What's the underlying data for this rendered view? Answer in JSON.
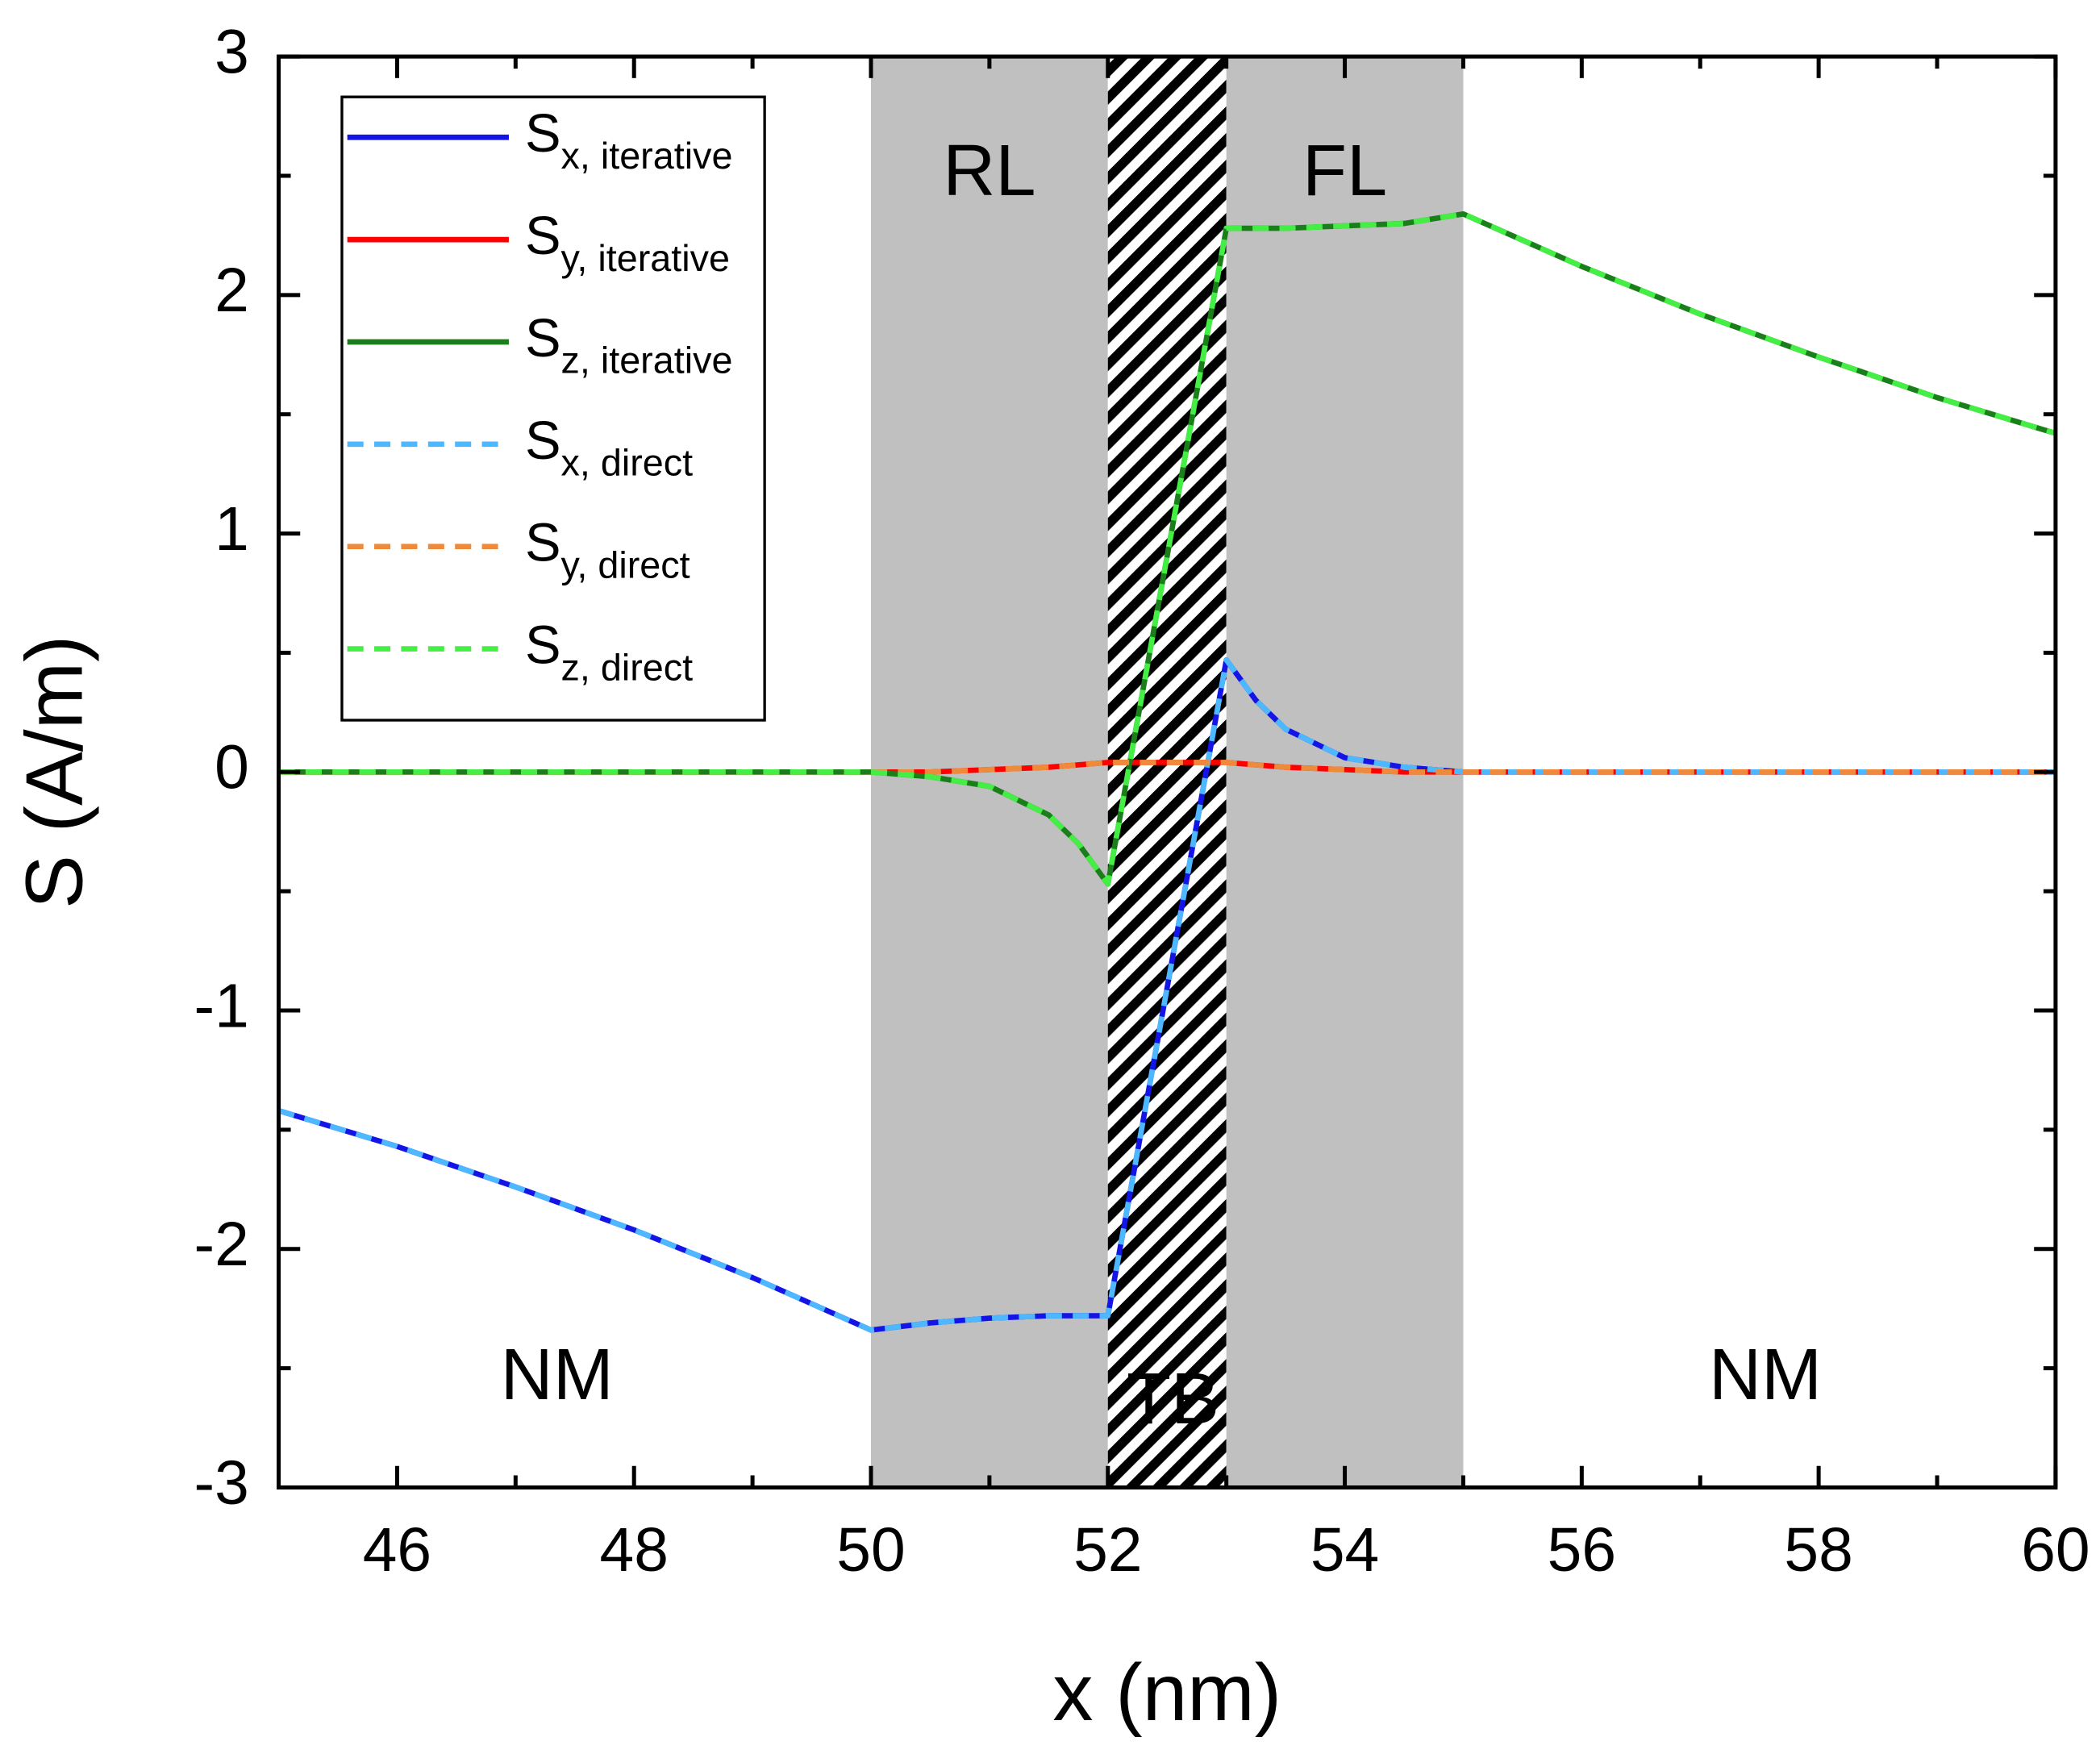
{
  "chart_data": {
    "type": "line",
    "xlabel": "x (nm)",
    "ylabel": "S (A/m)",
    "xlim": [
      45,
      60
    ],
    "ylim": [
      -3,
      3
    ],
    "xticks": [
      46,
      48,
      50,
      52,
      54,
      56,
      58,
      60
    ],
    "yticks": [
      -3,
      -2,
      -1,
      0,
      1,
      2,
      3
    ],
    "regions": [
      {
        "label": "RL",
        "x": [
          50,
          52
        ],
        "fill": "#c0c0c0"
      },
      {
        "label": "TB",
        "x": [
          52,
          53
        ],
        "fill": "hatch"
      },
      {
        "label": "FL",
        "x": [
          53,
          55
        ],
        "fill": "#c0c0c0"
      }
    ],
    "annotations": [
      "NM",
      "NM"
    ],
    "legend": "upper left",
    "x": [
      45,
      46,
      47,
      48,
      49,
      50,
      50.5,
      51,
      51.5,
      51.75,
      52,
      53,
      53.25,
      53.5,
      54,
      54.5,
      55,
      56,
      57,
      58,
      59,
      60
    ],
    "series": [
      {
        "name": "S",
        "subscript": "x, iterative",
        "color": "#1414e6",
        "style": "solid",
        "values": [
          -1.42,
          -1.57,
          -1.74,
          -1.92,
          -2.12,
          -2.34,
          -2.31,
          -2.29,
          -2.28,
          -2.28,
          -2.28,
          0.47,
          0.3,
          0.18,
          0.06,
          0.02,
          0,
          0,
          0,
          0,
          0,
          0
        ]
      },
      {
        "name": "S",
        "subscript": "y, iterative",
        "color": "#ff0000",
        "style": "solid",
        "values": [
          0,
          0,
          0,
          0,
          0,
          0,
          0,
          0.01,
          0.02,
          0.03,
          0.04,
          0.04,
          0.03,
          0.02,
          0.01,
          0,
          0,
          0,
          0,
          0,
          0,
          0
        ]
      },
      {
        "name": "S",
        "subscript": "z, iterative",
        "color": "#1a7f1a",
        "style": "solid",
        "values": [
          0,
          0,
          0,
          0,
          0,
          0,
          -0.02,
          -0.06,
          -0.18,
          -0.3,
          -0.47,
          2.28,
          2.28,
          2.28,
          2.29,
          2.3,
          2.34,
          2.12,
          1.92,
          1.74,
          1.57,
          1.42
        ]
      },
      {
        "name": "S",
        "subscript": "x, direct",
        "color": "#4db8ff",
        "style": "dashed",
        "values": [
          -1.42,
          -1.57,
          -1.74,
          -1.92,
          -2.12,
          -2.34,
          -2.31,
          -2.29,
          -2.28,
          -2.28,
          -2.28,
          0.47,
          0.3,
          0.18,
          0.06,
          0.02,
          0,
          0,
          0,
          0,
          0,
          0
        ]
      },
      {
        "name": "S",
        "subscript": "y, direct",
        "color": "#ee8a3a",
        "style": "dashed",
        "values": [
          0,
          0,
          0,
          0,
          0,
          0,
          0,
          0.01,
          0.02,
          0.03,
          0.04,
          0.04,
          0.03,
          0.02,
          0.01,
          0,
          0,
          0,
          0,
          0,
          0,
          0
        ]
      },
      {
        "name": "S",
        "subscript": "z, direct",
        "color": "#44ee44",
        "style": "dashed",
        "values": [
          0,
          0,
          0,
          0,
          0,
          0,
          -0.02,
          -0.06,
          -0.18,
          -0.3,
          -0.47,
          2.28,
          2.28,
          2.28,
          2.29,
          2.3,
          2.34,
          2.12,
          1.92,
          1.74,
          1.57,
          1.42
        ]
      }
    ]
  }
}
